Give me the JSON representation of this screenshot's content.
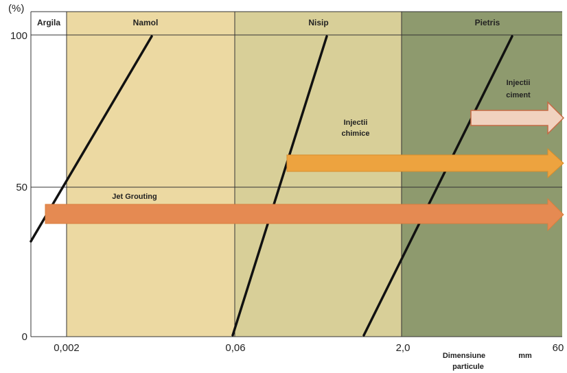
{
  "y_axis": {
    "unit": "(%)",
    "ticks": [
      "100",
      "50",
      "0"
    ]
  },
  "x_axis": {
    "ticks": [
      "0,002",
      "0,06",
      "2,0",
      "60"
    ],
    "label_line1": "Dimensiune",
    "label_line2": "particule",
    "unit": "mm"
  },
  "zones": [
    {
      "name": "Argila",
      "color": "#ffffff"
    },
    {
      "name": "Namol",
      "color": "#ecd9a2"
    },
    {
      "name": "Nisip",
      "color": "#d8cf98"
    },
    {
      "name": "Pietris",
      "color": "#8e9a6e"
    }
  ],
  "methods": [
    {
      "lines": [
        "Jet Grouting"
      ],
      "color": "#e58a52"
    },
    {
      "lines": [
        "Injectii",
        "chimice"
      ],
      "color": "#eda33f"
    },
    {
      "lines": [
        "Injectii",
        "ciment"
      ],
      "color": "#f1d2bf"
    }
  ],
  "colors": {
    "arrow_gold": "#eda33f",
    "grid_line": "#333333",
    "curve": "#111111"
  }
}
